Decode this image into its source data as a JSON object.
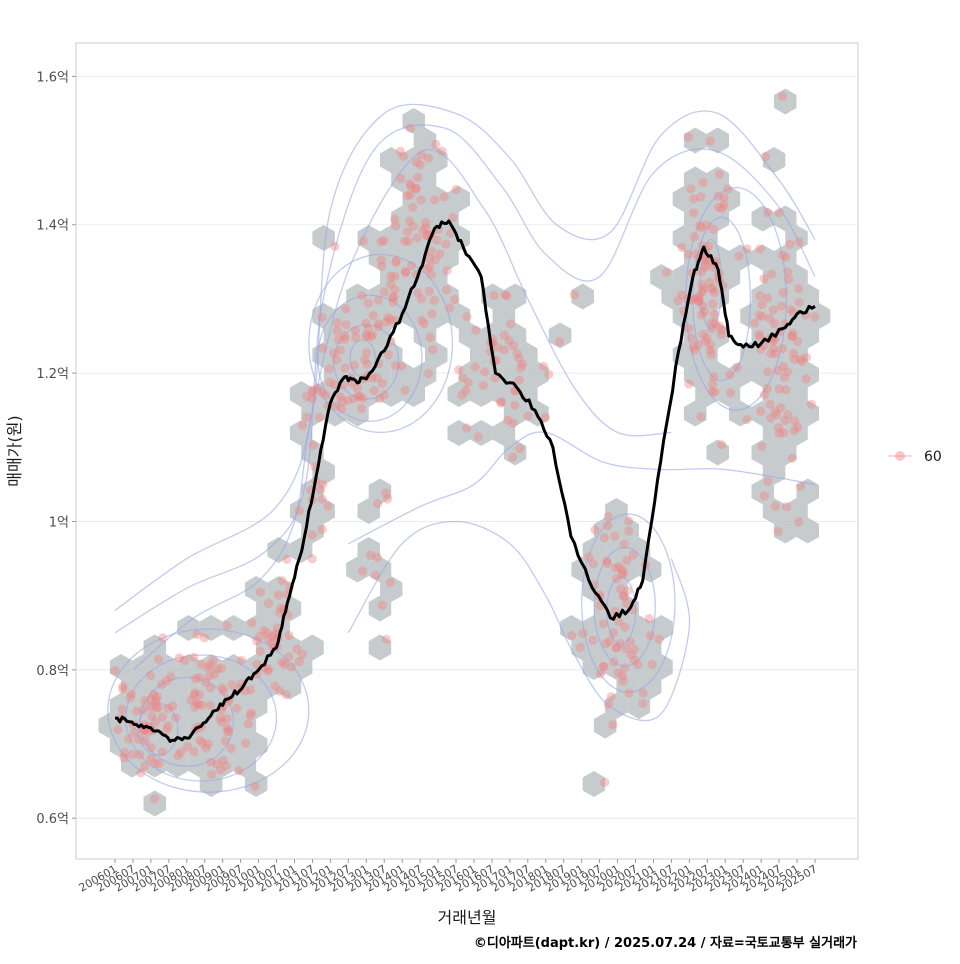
{
  "chart_data": {
    "type": "scatter",
    "title": "",
    "xlabel": "거래년월",
    "ylabel": "매매가(원)",
    "caption": "©디아파트(dapt.kr) / 2025.07.24 / 자료=국토교통부 실거래가",
    "ylim": [
      0.545,
      1.645
    ],
    "y_ticks": [
      {
        "value": 0.6,
        "label": "0.6억"
      },
      {
        "value": 0.8,
        "label": "0.8억"
      },
      {
        "value": 1.0,
        "label": "1억"
      },
      {
        "value": 1.2,
        "label": "1.2억"
      },
      {
        "value": 1.4,
        "label": "1.4억"
      },
      {
        "value": 1.6,
        "label": "1.6억"
      }
    ],
    "x_start": "200601",
    "x_end": "202507",
    "x_ticks": [
      "200601",
      "200607",
      "200701",
      "200707",
      "200801",
      "200807",
      "200901",
      "200907",
      "201001",
      "201007",
      "201101",
      "201107",
      "201201",
      "201207",
      "201301",
      "201307",
      "201401",
      "201407",
      "201501",
      "201507",
      "201601",
      "201607",
      "201701",
      "201707",
      "201801",
      "201807",
      "201901",
      "201907",
      "202001",
      "202007",
      "202101",
      "202107",
      "202201",
      "202207",
      "202301",
      "202307",
      "202401",
      "202407",
      "202501",
      "202507"
    ],
    "legend": {
      "title": "",
      "items": [
        "60"
      ],
      "position": "right"
    },
    "colors": {
      "points": "#f08080",
      "hex": "#bcc2c6",
      "contour": "#98a8e6",
      "trend": "#000000"
    },
    "trend": [
      {
        "x": 2006.0,
        "y": 0.735
      },
      {
        "x": 2006.4,
        "y": 0.73
      },
      {
        "x": 2006.8,
        "y": 0.722
      },
      {
        "x": 2007.2,
        "y": 0.718
      },
      {
        "x": 2007.6,
        "y": 0.705
      },
      {
        "x": 2008.0,
        "y": 0.708
      },
      {
        "x": 2008.4,
        "y": 0.724
      },
      {
        "x": 2008.8,
        "y": 0.745
      },
      {
        "x": 2009.2,
        "y": 0.762
      },
      {
        "x": 2009.6,
        "y": 0.78
      },
      {
        "x": 2010.0,
        "y": 0.8
      },
      {
        "x": 2010.5,
        "y": 0.83
      },
      {
        "x": 2010.8,
        "y": 0.89
      },
      {
        "x": 2011.2,
        "y": 0.96
      },
      {
        "x": 2011.6,
        "y": 1.06
      },
      {
        "x": 2012.0,
        "y": 1.16
      },
      {
        "x": 2012.4,
        "y": 1.195
      },
      {
        "x": 2012.7,
        "y": 1.19
      },
      {
        "x": 2013.0,
        "y": 1.192
      },
      {
        "x": 2013.5,
        "y": 1.23
      },
      {
        "x": 2014.0,
        "y": 1.28
      },
      {
        "x": 2014.5,
        "y": 1.34
      },
      {
        "x": 2014.9,
        "y": 1.395
      },
      {
        "x": 2015.3,
        "y": 1.405
      },
      {
        "x": 2015.7,
        "y": 1.37
      },
      {
        "x": 2016.2,
        "y": 1.33
      },
      {
        "x": 2016.6,
        "y": 1.2
      },
      {
        "x": 2017.2,
        "y": 1.18
      },
      {
        "x": 2017.7,
        "y": 1.15
      },
      {
        "x": 2018.2,
        "y": 1.1
      },
      {
        "x": 2018.7,
        "y": 0.98
      },
      {
        "x": 2019.3,
        "y": 0.91
      },
      {
        "x": 2019.8,
        "y": 0.87
      },
      {
        "x": 2020.3,
        "y": 0.88
      },
      {
        "x": 2020.7,
        "y": 0.92
      },
      {
        "x": 2021.2,
        "y": 1.08
      },
      {
        "x": 2021.7,
        "y": 1.23
      },
      {
        "x": 2022.1,
        "y": 1.33
      },
      {
        "x": 2022.4,
        "y": 1.37
      },
      {
        "x": 2022.8,
        "y": 1.34
      },
      {
        "x": 2023.1,
        "y": 1.25
      },
      {
        "x": 2023.5,
        "y": 1.235
      },
      {
        "x": 2024.0,
        "y": 1.24
      },
      {
        "x": 2024.6,
        "y": 1.26
      },
      {
        "x": 2025.0,
        "y": 1.28
      },
      {
        "x": 2025.5,
        "y": 1.29
      }
    ],
    "clusters": [
      {
        "x": 2006.8,
        "y": 0.725,
        "sx": 0.8,
        "sy": 0.05,
        "n": 55
      },
      {
        "x": 2008.6,
        "y": 0.74,
        "sx": 1.1,
        "sy": 0.06,
        "n": 75
      },
      {
        "x": 2010.5,
        "y": 0.84,
        "sx": 0.7,
        "sy": 0.06,
        "n": 40
      },
      {
        "x": 2011.6,
        "y": 1.08,
        "sx": 0.4,
        "sy": 0.1,
        "n": 20
      },
      {
        "x": 2012.7,
        "y": 1.22,
        "sx": 1.0,
        "sy": 0.06,
        "n": 70
      },
      {
        "x": 2014.5,
        "y": 1.38,
        "sx": 1.0,
        "sy": 0.08,
        "n": 80
      },
      {
        "x": 2016.9,
        "y": 1.22,
        "sx": 1.4,
        "sy": 0.07,
        "n": 50
      },
      {
        "x": 2013.5,
        "y": 0.96,
        "sx": 0.8,
        "sy": 0.05,
        "n": 10
      },
      {
        "x": 2020.0,
        "y": 0.88,
        "sx": 0.8,
        "sy": 0.08,
        "n": 70
      },
      {
        "x": 2022.4,
        "y": 1.32,
        "sx": 0.6,
        "sy": 0.12,
        "n": 90
      },
      {
        "x": 2024.5,
        "y": 1.22,
        "sx": 0.9,
        "sy": 0.12,
        "n": 90
      }
    ],
    "contours": [
      {
        "points": [
          [
            2006.0,
            0.88
          ],
          [
            2008.0,
            0.95
          ],
          [
            2010.5,
            1.02
          ],
          [
            2011.5,
            1.15
          ],
          [
            2012.0,
            1.42
          ],
          [
            2013.5,
            1.55
          ],
          [
            2015.5,
            1.55
          ],
          [
            2017.0,
            1.49
          ],
          [
            2018.3,
            1.4
          ],
          [
            2019.8,
            1.39
          ],
          [
            2021.2,
            1.52
          ],
          [
            2022.8,
            1.55
          ],
          [
            2024.5,
            1.46
          ],
          [
            2025.5,
            1.38
          ]
        ]
      },
      {
        "points": [
          [
            2006.0,
            0.85
          ],
          [
            2008.0,
            0.91
          ],
          [
            2010.2,
            0.96
          ],
          [
            2011.3,
            1.05
          ],
          [
            2011.8,
            1.3
          ],
          [
            2013.2,
            1.5
          ],
          [
            2015.2,
            1.53
          ],
          [
            2016.8,
            1.45
          ],
          [
            2018.0,
            1.36
          ],
          [
            2019.5,
            1.33
          ],
          [
            2021.0,
            1.47
          ],
          [
            2022.7,
            1.5
          ],
          [
            2024.4,
            1.43
          ],
          [
            2025.5,
            1.33
          ]
        ]
      },
      {
        "points": [
          [
            2006.5,
            0.8
          ],
          [
            2008.2,
            0.87
          ],
          [
            2010.0,
            0.92
          ],
          [
            2011.0,
            1.0
          ],
          [
            2011.5,
            1.15
          ],
          [
            2012.6,
            1.35
          ],
          [
            2014.6,
            1.5
          ],
          [
            2016.3,
            1.42
          ],
          [
            2017.5,
            1.3
          ],
          [
            2018.8,
            1.18
          ],
          [
            2020.0,
            1.12
          ],
          [
            2021.5,
            1.12
          ]
        ]
      },
      {
        "points": [
          [
            2012.5,
            0.97
          ],
          [
            2014.5,
            1.02
          ],
          [
            2016.0,
            1.05
          ],
          [
            2017.0,
            1.1
          ],
          [
            2018.0,
            1.12
          ],
          [
            2019.6,
            1.08
          ],
          [
            2021.2,
            1.07
          ],
          [
            2023.0,
            1.07
          ],
          [
            2025.5,
            1.05
          ]
        ]
      },
      {
        "points": [
          [
            2012.5,
            0.85
          ],
          [
            2014.0,
            0.97
          ],
          [
            2015.5,
            1.0
          ],
          [
            2017.0,
            0.97
          ],
          [
            2018.0,
            0.9
          ],
          [
            2018.8,
            0.82
          ],
          [
            2019.8,
            0.75
          ],
          [
            2021.2,
            0.74
          ],
          [
            2022.0,
            0.86
          ],
          [
            2021.5,
            0.95
          ]
        ]
      }
    ],
    "rings": [
      {
        "x": 2007.2,
        "y": 0.72,
        "rx": 0.55,
        "ry": 0.035
      },
      {
        "x": 2008.0,
        "y": 0.73,
        "rx": 1.3,
        "ry": 0.06
      },
      {
        "x": 2008.4,
        "y": 0.735,
        "rx": 2.1,
        "ry": 0.085
      },
      {
        "x": 2008.6,
        "y": 0.745,
        "rx": 2.8,
        "ry": 0.11
      },
      {
        "x": 2012.9,
        "y": 1.22,
        "rx": 0.35,
        "ry": 0.025
      },
      {
        "x": 2013.0,
        "y": 1.215,
        "rx": 0.9,
        "ry": 0.05
      },
      {
        "x": 2013.1,
        "y": 1.22,
        "rx": 1.45,
        "ry": 0.085
      },
      {
        "x": 2013.4,
        "y": 1.24,
        "rx": 2.0,
        "ry": 0.12
      },
      {
        "x": 2020.1,
        "y": 0.88,
        "rx": 0.4,
        "ry": 0.045
      },
      {
        "x": 2020.2,
        "y": 0.885,
        "rx": 0.85,
        "ry": 0.08
      },
      {
        "x": 2020.3,
        "y": 0.89,
        "rx": 1.3,
        "ry": 0.12
      },
      {
        "x": 2022.6,
        "y": 1.32,
        "rx": 0.3,
        "ry": 0.06
      },
      {
        "x": 2022.9,
        "y": 1.3,
        "rx": 0.8,
        "ry": 0.11
      },
      {
        "x": 2023.3,
        "y": 1.3,
        "rx": 1.4,
        "ry": 0.15
      }
    ]
  }
}
